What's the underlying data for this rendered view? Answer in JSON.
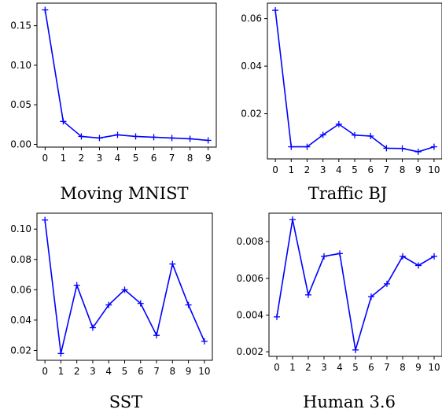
{
  "chart_data": [
    {
      "type": "line",
      "title": "Moving MNIST",
      "x": [
        0,
        1,
        2,
        3,
        4,
        5,
        6,
        7,
        8,
        9
      ],
      "values": [
        0.17,
        0.029,
        0.01,
        0.008,
        0.012,
        0.01,
        0.009,
        0.008,
        0.007,
        0.005
      ],
      "xticks": [
        "0",
        "1",
        "2",
        "3",
        "4",
        "5",
        "6",
        "7",
        "8",
        "9"
      ],
      "yticks": [
        0.0,
        0.05,
        0.1,
        0.15
      ],
      "ytick_labels": [
        "0.00",
        "0.05",
        "0.10",
        "0.15"
      ],
      "xlim": [
        -0.45,
        9.45
      ],
      "ylim": [
        -0.0035,
        0.1785
      ],
      "series_color": "#0000ff",
      "marker": "+",
      "grid": false
    },
    {
      "type": "line",
      "title": "Traffic BJ",
      "x": [
        0,
        1,
        2,
        3,
        4,
        5,
        6,
        7,
        8,
        9,
        10
      ],
      "values": [
        0.0635,
        0.0061,
        0.0061,
        0.0111,
        0.0156,
        0.011,
        0.0106,
        0.0055,
        0.0054,
        0.004,
        0.0061
      ],
      "xticks": [
        "0",
        "1",
        "2",
        "3",
        "4",
        "5",
        "6",
        "7",
        "8",
        "9",
        "10"
      ],
      "yticks": [
        0.02,
        0.04,
        0.06
      ],
      "ytick_labels": [
        "0.02",
        "0.04",
        "0.06"
      ],
      "xlim": [
        -0.5,
        10.5
      ],
      "ylim": [
        0.001,
        0.0665
      ],
      "series_color": "#0000ff",
      "marker": "+",
      "grid": false
    },
    {
      "type": "line",
      "title": "SST",
      "x": [
        0,
        1,
        2,
        3,
        4,
        5,
        6,
        7,
        8,
        9,
        10
      ],
      "values": [
        0.106,
        0.018,
        0.063,
        0.035,
        0.05,
        0.06,
        0.051,
        0.03,
        0.077,
        0.05,
        0.026
      ],
      "xticks": [
        "0",
        "1",
        "2",
        "3",
        "4",
        "5",
        "6",
        "7",
        "8",
        "9",
        "10"
      ],
      "yticks": [
        0.02,
        0.04,
        0.06,
        0.08,
        0.1
      ],
      "ytick_labels": [
        "0.02",
        "0.04",
        "0.06",
        "0.08",
        "0.10"
      ],
      "xlim": [
        -0.5,
        10.5
      ],
      "ylim": [
        0.0135,
        0.1105
      ],
      "series_color": "#0000ff",
      "marker": "+",
      "grid": false
    },
    {
      "type": "line",
      "title": "Human 3.6",
      "x": [
        0,
        1,
        2,
        3,
        4,
        5,
        6,
        7,
        8,
        9,
        10
      ],
      "values": [
        0.0039,
        0.0092,
        0.0051,
        0.0072,
        0.00735,
        0.0021,
        0.005,
        0.0057,
        0.0072,
        0.0067,
        0.0072
      ],
      "xticks": [
        "0",
        "1",
        "2",
        "3",
        "4",
        "5",
        "6",
        "7",
        "8",
        "9",
        "10"
      ],
      "yticks": [
        0.002,
        0.004,
        0.006,
        0.008
      ],
      "ytick_labels": [
        "0.002",
        "0.004",
        "0.006",
        "0.008"
      ],
      "xlim": [
        -0.5,
        10.5
      ],
      "ylim": [
        0.00175,
        0.00955
      ],
      "series_color": "#0000ff",
      "marker": "+",
      "grid": false
    }
  ]
}
